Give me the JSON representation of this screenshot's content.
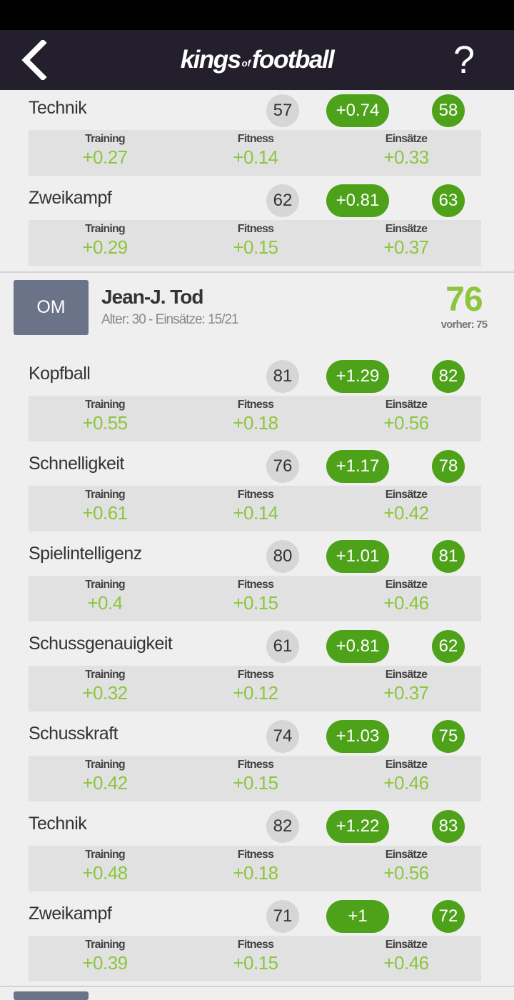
{
  "header": {
    "logo_part1": "kings",
    "logo_of": "of",
    "logo_part2": "football",
    "help_label": "?"
  },
  "labels": {
    "training": "Training",
    "fitness": "Fitness",
    "einsaetze": "Einsätze"
  },
  "prev_attributes": [
    {
      "name": "Technik",
      "old": "57",
      "delta": "+0.74",
      "new": "58",
      "training": "+0.27",
      "fitness": "+0.14",
      "einsaetze": "+0.33"
    },
    {
      "name": "Zweikampf",
      "old": "62",
      "delta": "+0.81",
      "new": "63",
      "training": "+0.29",
      "fitness": "+0.15",
      "einsaetze": "+0.37"
    }
  ],
  "player": {
    "position": "OM",
    "name": "Jean-J. Tod",
    "meta": "Alter: 30 - Einsätze: 15/21",
    "rating": "76",
    "previous": "vorher: 75"
  },
  "attributes": [
    {
      "name": "Kopfball",
      "old": "81",
      "delta": "+1.29",
      "new": "82",
      "training": "+0.55",
      "fitness": "+0.18",
      "einsaetze": "+0.56"
    },
    {
      "name": "Schnelligkeit",
      "old": "76",
      "delta": "+1.17",
      "new": "78",
      "training": "+0.61",
      "fitness": "+0.14",
      "einsaetze": "+0.42"
    },
    {
      "name": "Spielintelligenz",
      "old": "80",
      "delta": "+1.01",
      "new": "81",
      "training": "+0.4",
      "fitness": "+0.15",
      "einsaetze": "+0.46"
    },
    {
      "name": "Schussgenauigkeit",
      "old": "61",
      "delta": "+0.81",
      "new": "62",
      "training": "+0.32",
      "fitness": "+0.12",
      "einsaetze": "+0.37"
    },
    {
      "name": "Schusskraft",
      "old": "74",
      "delta": "+1.03",
      "new": "75",
      "training": "+0.42",
      "fitness": "+0.15",
      "einsaetze": "+0.46"
    },
    {
      "name": "Technik",
      "old": "82",
      "delta": "+1.22",
      "new": "83",
      "training": "+0.48",
      "fitness": "+0.18",
      "einsaetze": "+0.56"
    },
    {
      "name": "Zweikampf",
      "old": "71",
      "delta": "+1",
      "new": "72",
      "training": "+0.39",
      "fitness": "+0.15",
      "einsaetze": "+0.46"
    }
  ],
  "colors": {
    "appbar": "#231f2d",
    "accent_green": "#4ea21a",
    "light_green": "#8cc63f",
    "badge_gray": "#6b7389"
  }
}
